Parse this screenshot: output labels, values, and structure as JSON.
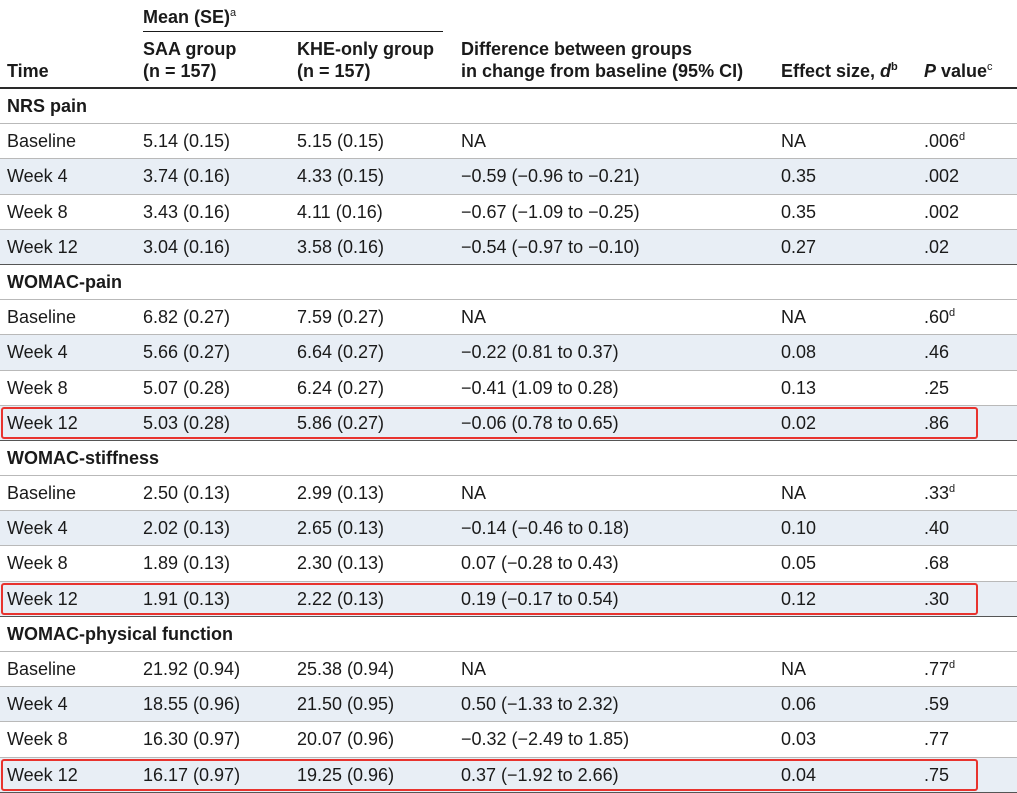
{
  "table": {
    "header": {
      "time": "Time",
      "mean_se": "Mean (SE)",
      "mean_se_sup": "a",
      "saa_group": "SAA group",
      "saa_n": "(n = 157)",
      "khe_group": "KHE-only group",
      "khe_n": "(n = 157)",
      "diff_line1": "Difference between groups",
      "diff_line2": "in change from baseline (95% CI)",
      "effect_size": "Effect size, ",
      "effect_d": "d",
      "effect_sup": "b",
      "p_value_p": "P",
      "p_value_rest": " value",
      "p_value_sup": "c"
    },
    "sections": [
      {
        "title": "NRS pain",
        "rows": [
          {
            "time": "Baseline",
            "saa": "5.14 (0.15)",
            "khe": "5.15 (0.15)",
            "diff": "NA",
            "effect": "NA",
            "p": ".006",
            "p_sup": "d"
          },
          {
            "time": "Week 4",
            "saa": "3.74 (0.16)",
            "khe": "4.33 (0.15)",
            "diff": "−0.59 (−0.96 to −0.21)",
            "effect": "0.35",
            "p": ".002",
            "p_sup": ""
          },
          {
            "time": "Week 8",
            "saa": "3.43 (0.16)",
            "khe": "4.11 (0.16)",
            "diff": "−0.67 (−1.09 to −0.25)",
            "effect": "0.35",
            "p": ".002",
            "p_sup": ""
          },
          {
            "time": "Week 12",
            "saa": "3.04 (0.16)",
            "khe": "3.58 (0.16)",
            "diff": "−0.54 (−0.97 to −0.10)",
            "effect": "0.27",
            "p": ".02",
            "p_sup": ""
          }
        ]
      },
      {
        "title": "WOMAC-pain",
        "rows": [
          {
            "time": "Baseline",
            "saa": "6.82 (0.27)",
            "khe": "7.59 (0.27)",
            "diff": "NA",
            "effect": "NA",
            "p": ".60",
            "p_sup": "d"
          },
          {
            "time": "Week 4",
            "saa": "5.66 (0.27)",
            "khe": "6.64 (0.27)",
            "diff": "−0.22 (0.81 to 0.37)",
            "effect": "0.08",
            "p": ".46",
            "p_sup": ""
          },
          {
            "time": "Week 8",
            "saa": "5.07 (0.28)",
            "khe": "6.24 (0.27)",
            "diff": "−0.41 (1.09 to 0.28)",
            "effect": "0.13",
            "p": ".25",
            "p_sup": ""
          },
          {
            "time": "Week 12",
            "saa": "5.03 (0.28)",
            "khe": "5.86 (0.27)",
            "diff": "−0.06 (0.78 to 0.65)",
            "effect": "0.02",
            "p": ".86",
            "p_sup": "",
            "highlight": true
          }
        ]
      },
      {
        "title": "WOMAC-stiffness",
        "rows": [
          {
            "time": "Baseline",
            "saa": "2.50 (0.13)",
            "khe": "2.99 (0.13)",
            "diff": "NA",
            "effect": "NA",
            "p": ".33",
            "p_sup": "d"
          },
          {
            "time": "Week 4",
            "saa": "2.02 (0.13)",
            "khe": "2.65 (0.13)",
            "diff": "−0.14 (−0.46 to 0.18)",
            "effect": "0.10",
            "p": ".40",
            "p_sup": ""
          },
          {
            "time": "Week 8",
            "saa": "1.89 (0.13)",
            "khe": "2.30 (0.13)",
            "diff": "0.07 (−0.28 to 0.43)",
            "effect": "0.05",
            "p": ".68",
            "p_sup": ""
          },
          {
            "time": "Week 12",
            "saa": "1.91 (0.13)",
            "khe": "2.22 (0.13)",
            "diff": "0.19 (−0.17 to 0.54)",
            "effect": "0.12",
            "p": ".30",
            "p_sup": "",
            "highlight": true
          }
        ]
      },
      {
        "title": "WOMAC-physical function",
        "rows": [
          {
            "time": "Baseline",
            "saa": "21.92 (0.94)",
            "khe": "25.38 (0.94)",
            "diff": "NA",
            "effect": "NA",
            "p": ".77",
            "p_sup": "d"
          },
          {
            "time": "Week 4",
            "saa": "18.55 (0.96)",
            "khe": "21.50 (0.95)",
            "diff": "0.50 (−1.33 to 2.32)",
            "effect": "0.06",
            "p": ".59",
            "p_sup": ""
          },
          {
            "time": "Week 8",
            "saa": "16.30 (0.97)",
            "khe": "20.07 (0.96)",
            "diff": "−0.32 (−2.49 to 1.85)",
            "effect": "0.03",
            "p": ".77",
            "p_sup": ""
          },
          {
            "time": "Week 12",
            "saa": "16.17 (0.97)",
            "khe": "19.25 (0.96)",
            "diff": "0.37 (−1.92 to 2.66)",
            "effect": "0.04",
            "p": ".75",
            "p_sup": "",
            "highlight": true
          }
        ]
      }
    ]
  },
  "colors": {
    "row_shade": "#e8eef5",
    "highlight_border": "#e8332e",
    "text": "#1a1a1a"
  }
}
